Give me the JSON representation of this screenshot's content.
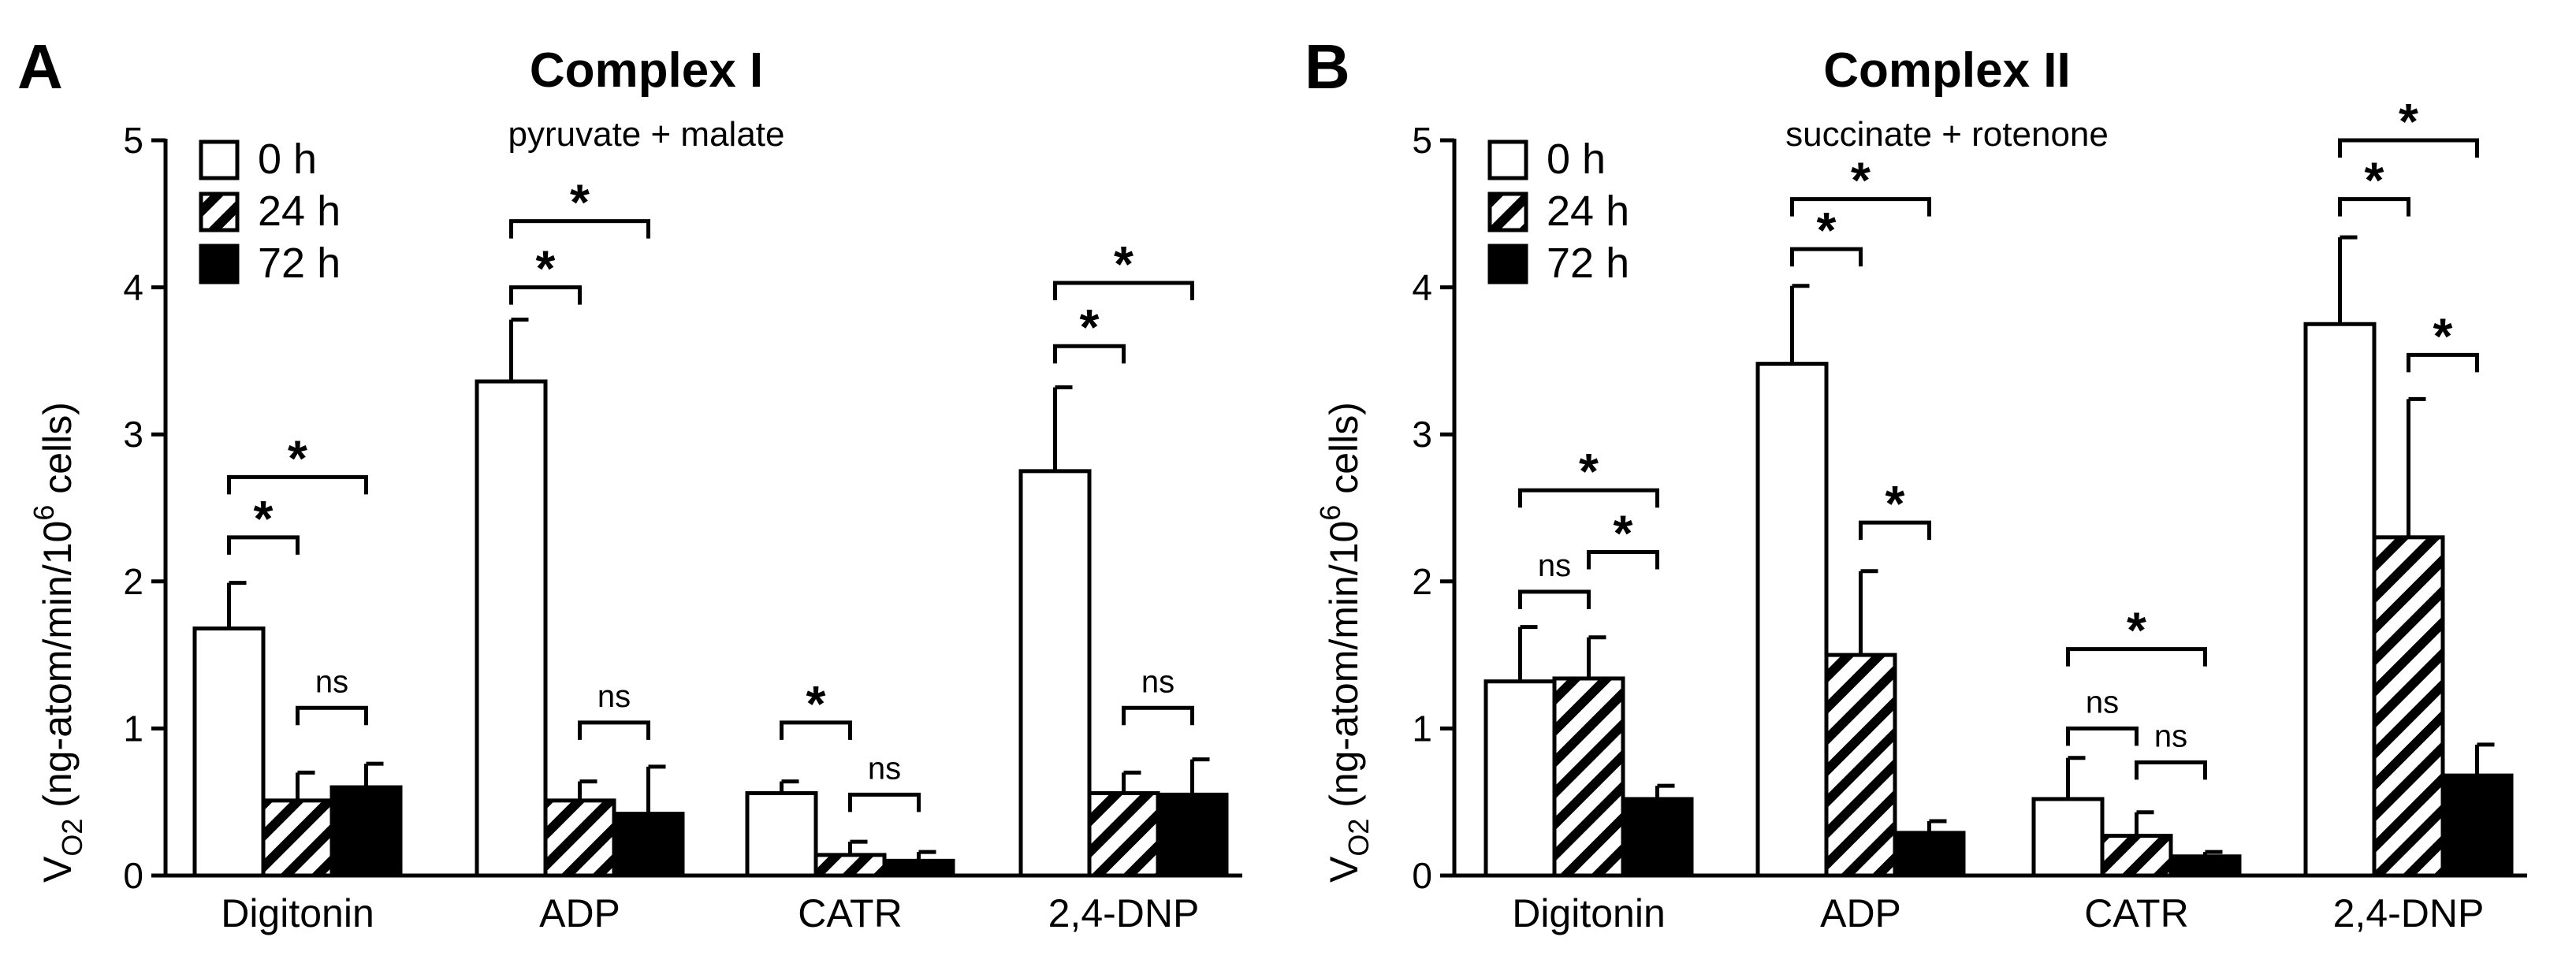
{
  "chart_data": [
    {
      "type": "bar",
      "panel": "A",
      "title": "Complex I",
      "subtitle": "pyruvate + malate",
      "ylabel_main": "V",
      "ylabel_sub": "O2",
      "ylabel_rest": " (ng-atom/min/10",
      "ylabel_sup": "6",
      "ylabel_end": " cells)",
      "ylim": [
        0,
        5
      ],
      "yticks": [
        "0",
        "1",
        "2",
        "3",
        "4",
        "5"
      ],
      "categories": [
        "Digitonin",
        "ADP",
        "CATR",
        "2,4-DNP"
      ],
      "series": [
        {
          "name": "0 h",
          "pattern": "white",
          "values": [
            1.68,
            3.36,
            0.56,
            2.75
          ],
          "errors": [
            0.31,
            0.42,
            0.08,
            0.57
          ]
        },
        {
          "name": "24 h",
          "pattern": "hatch",
          "values": [
            0.51,
            0.51,
            0.14,
            0.56
          ],
          "errors": [
            0.19,
            0.13,
            0.09,
            0.14
          ]
        },
        {
          "name": "72 h",
          "pattern": "black",
          "values": [
            0.6,
            0.42,
            0.1,
            0.55
          ],
          "errors": [
            0.16,
            0.32,
            0.06,
            0.24
          ]
        }
      ],
      "legend": [
        "0 h",
        "24 h",
        "72 h"
      ],
      "legend_position": "top-left",
      "annotations": [
        {
          "group": 0,
          "from": 0,
          "to": 1,
          "label": "*",
          "level": 2.3
        },
        {
          "group": 0,
          "from": 0,
          "to": 2,
          "label": "*",
          "level": 2.71
        },
        {
          "group": 0,
          "from": 1,
          "to": 2,
          "label": "ns",
          "level": 1.14
        },
        {
          "group": 1,
          "from": 0,
          "to": 1,
          "label": "*",
          "level": 4.0
        },
        {
          "group": 1,
          "from": 0,
          "to": 2,
          "label": "*",
          "level": 4.45
        },
        {
          "group": 1,
          "from": 1,
          "to": 2,
          "label": "ns",
          "level": 1.04
        },
        {
          "group": 2,
          "from": 0,
          "to": 1,
          "label": "*",
          "level": 1.04
        },
        {
          "group": 2,
          "from": 1,
          "to": 2,
          "label": "ns",
          "level": 0.55
        },
        {
          "group": 3,
          "from": 0,
          "to": 1,
          "label": "*",
          "level": 3.6
        },
        {
          "group": 3,
          "from": 0,
          "to": 2,
          "label": "*",
          "level": 4.03
        },
        {
          "group": 3,
          "from": 1,
          "to": 2,
          "label": "ns",
          "level": 1.14
        }
      ]
    },
    {
      "type": "bar",
      "panel": "B",
      "title": "Complex II",
      "subtitle": "succinate + rotenone",
      "ylabel_main": "V",
      "ylabel_sub": "O2",
      "ylabel_rest": " (ng-atom/min/10",
      "ylabel_sup": "6",
      "ylabel_end": " cells)",
      "ylim": [
        0,
        5
      ],
      "yticks": [
        "0",
        "1",
        "2",
        "3",
        "4",
        "5"
      ],
      "categories": [
        "Digitonin",
        "ADP",
        "CATR",
        "2,4-DNP"
      ],
      "series": [
        {
          "name": "0 h",
          "pattern": "white",
          "values": [
            1.32,
            3.48,
            0.52,
            3.75
          ],
          "errors": [
            0.37,
            0.53,
            0.28,
            0.59
          ]
        },
        {
          "name": "24 h",
          "pattern": "hatch",
          "values": [
            1.34,
            1.5,
            0.27,
            2.3
          ],
          "errors": [
            0.28,
            0.57,
            0.16,
            0.94
          ]
        },
        {
          "name": "72 h",
          "pattern": "black",
          "values": [
            0.52,
            0.29,
            0.13,
            0.68
          ],
          "errors": [
            0.09,
            0.08,
            0.03,
            0.21
          ]
        }
      ],
      "legend": [
        "0 h",
        "24 h",
        "72 h"
      ],
      "legend_position": "top-left",
      "annotations": [
        {
          "group": 0,
          "from": 0,
          "to": 1,
          "label": "ns",
          "level": 1.93
        },
        {
          "group": 0,
          "from": 0,
          "to": 2,
          "label": "*",
          "level": 2.62
        },
        {
          "group": 0,
          "from": 1,
          "to": 2,
          "label": "*",
          "level": 2.2
        },
        {
          "group": 1,
          "from": 0,
          "to": 1,
          "label": "*",
          "level": 4.26
        },
        {
          "group": 1,
          "from": 0,
          "to": 2,
          "label": "*",
          "level": 4.6
        },
        {
          "group": 1,
          "from": 1,
          "to": 2,
          "label": "*",
          "level": 2.4
        },
        {
          "group": 2,
          "from": 0,
          "to": 1,
          "label": "ns",
          "level": 1.0
        },
        {
          "group": 2,
          "from": 0,
          "to": 2,
          "label": "*",
          "level": 1.54
        },
        {
          "group": 2,
          "from": 1,
          "to": 2,
          "label": "ns",
          "level": 0.77
        },
        {
          "group": 3,
          "from": 0,
          "to": 1,
          "label": "*",
          "level": 4.6
        },
        {
          "group": 3,
          "from": 0,
          "to": 2,
          "label": "*",
          "level": 5.0
        },
        {
          "group": 3,
          "from": 1,
          "to": 2,
          "label": "*",
          "level": 3.54
        }
      ]
    }
  ]
}
